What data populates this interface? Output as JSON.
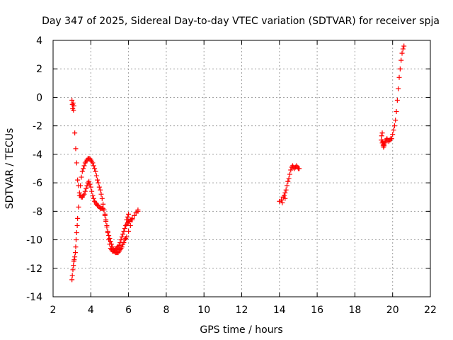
{
  "chart_data": {
    "type": "scatter",
    "title": "Day 347 of 2025, Sidereal Day-to-day VTEC variation (SDTVAR) for receiver spja",
    "xlabel": "GPS time / hours",
    "ylabel": "SDTVAR / TECUs",
    "xlim": [
      2,
      22
    ],
    "ylim": [
      -14,
      4
    ],
    "xticks": [
      "2",
      "4",
      "6",
      "8",
      "10",
      "12",
      "14",
      "16",
      "18",
      "20",
      "22"
    ],
    "yticks": [
      "4",
      "2",
      "0",
      "-2",
      "-4",
      "-6",
      "-8",
      "-10",
      "-12",
      "-14"
    ],
    "grid": true,
    "marker": "+",
    "color": "#ff0000",
    "series": [
      {
        "name": "SDTVAR",
        "x": [
          3.0,
          3.02,
          3.04,
          3.06,
          3.08,
          3.1,
          3.15,
          3.2,
          3.25,
          3.3,
          3.35,
          3.4,
          3.45,
          3.5,
          3.55,
          3.6,
          3.65,
          3.7,
          3.75,
          3.8,
          3.85,
          3.9,
          3.95,
          4.0,
          4.05,
          4.1,
          4.15,
          4.2,
          4.25,
          4.3,
          4.35,
          4.4,
          4.45,
          4.5,
          4.55,
          4.6,
          4.65,
          4.7,
          4.75,
          4.8,
          4.85,
          4.9,
          4.95,
          5.0,
          5.05,
          5.1,
          5.15,
          5.2,
          5.25,
          5.3,
          5.35,
          5.4,
          5.45,
          5.5,
          5.55,
          5.6,
          5.65,
          5.7,
          5.75,
          5.8,
          5.85,
          5.9,
          5.95,
          6.0,
          6.05,
          6.1,
          6.15,
          6.2,
          6.3,
          6.4,
          6.5,
          3.0,
          3.02,
          3.05,
          3.08,
          3.1,
          3.12,
          3.15,
          3.18,
          3.2,
          3.22,
          3.25,
          3.28,
          3.3,
          3.35,
          3.4,
          3.45,
          3.5,
          3.55,
          3.6,
          3.65,
          3.7,
          3.75,
          3.8,
          3.85,
          3.9,
          3.95,
          4.0,
          4.05,
          4.1,
          4.15,
          4.2,
          4.25,
          4.3,
          4.35,
          4.4,
          4.45,
          4.5,
          4.55,
          4.6,
          4.65,
          4.7,
          4.75,
          4.8,
          4.85,
          4.9,
          4.95,
          5.0,
          5.05,
          5.1,
          5.15,
          5.2,
          5.25,
          5.3,
          5.35,
          5.4,
          5.45,
          5.5,
          5.55,
          5.6,
          5.65,
          5.7,
          5.75,
          5.8,
          5.85,
          5.9,
          6.0,
          6.1,
          6.2,
          6.3,
          6.4,
          6.5,
          5.9,
          5.95,
          6.0,
          14.0,
          14.1,
          14.2,
          14.25,
          14.3,
          14.35,
          14.4,
          14.45,
          14.5,
          14.55,
          14.6,
          14.65,
          14.7,
          14.75,
          14.8,
          14.85,
          14.9,
          14.95,
          15.0,
          15.05,
          14.15,
          14.3,
          19.4,
          19.42,
          19.45,
          19.48,
          19.5,
          19.52,
          19.55,
          19.6,
          19.65,
          19.7,
          19.75,
          19.8,
          19.85,
          19.9,
          19.95,
          20.0,
          20.05,
          20.1,
          20.15,
          20.2,
          20.25,
          20.3,
          20.35,
          20.4,
          20.45,
          20.5,
          20.55,
          20.6,
          19.45,
          19.5,
          19.55,
          19.6
        ],
        "y": [
          -0.2,
          -0.5,
          -0.8,
          -0.4,
          -0.9,
          -0.6,
          -2.5,
          -3.6,
          -4.6,
          -5.8,
          -6.2,
          -6.7,
          -6.9,
          -7.0,
          -7.0,
          -6.9,
          -6.8,
          -6.6,
          -6.4,
          -6.2,
          -6.0,
          -5.9,
          -6.1,
          -6.3,
          -6.6,
          -6.9,
          -7.1,
          -7.3,
          -7.4,
          -7.5,
          -7.6,
          -7.6,
          -7.7,
          -7.8,
          -7.8,
          -7.8,
          -7.8,
          -7.9,
          -8.2,
          -8.6,
          -9.0,
          -9.5,
          -10.0,
          -10.3,
          -10.6,
          -10.7,
          -10.8,
          -10.8,
          -10.8,
          -10.7,
          -10.6,
          -10.5,
          -10.5,
          -10.4,
          -10.2,
          -10.0,
          -9.8,
          -9.6,
          -9.4,
          -9.2,
          -9.0,
          -8.9,
          -8.8,
          -8.7,
          -8.7,
          -8.6,
          -8.6,
          -8.5,
          -8.3,
          -8.1,
          -7.9,
          -12.8,
          -12.5,
          -12.1,
          -11.8,
          -11.5,
          -11.4,
          -11.2,
          -10.9,
          -10.5,
          -10.0,
          -9.5,
          -9.0,
          -8.5,
          -7.7,
          -6.9,
          -6.2,
          -5.6,
          -5.2,
          -5.0,
          -4.8,
          -4.6,
          -4.5,
          -4.4,
          -4.3,
          -4.3,
          -4.3,
          -4.4,
          -4.5,
          -4.6,
          -4.8,
          -5.0,
          -5.2,
          -5.5,
          -5.8,
          -6.0,
          -6.3,
          -6.5,
          -6.8,
          -7.1,
          -7.5,
          -7.9,
          -8.3,
          -8.7,
          -9.1,
          -9.4,
          -9.7,
          -9.9,
          -10.1,
          -10.3,
          -10.5,
          -10.7,
          -10.8,
          -10.9,
          -10.9,
          -10.9,
          -10.9,
          -10.8,
          -10.7,
          -10.6,
          -10.5,
          -10.3,
          -10.2,
          -10.0,
          -9.9,
          -9.8,
          -9.4,
          -9.0,
          -8.6,
          -8.3,
          -8.1,
          -8.0,
          -8.6,
          -8.4,
          -8.2,
          -7.3,
          -7.2,
          -7.0,
          -6.9,
          -6.7,
          -6.5,
          -6.2,
          -5.9,
          -5.7,
          -5.4,
          -5.1,
          -4.9,
          -4.8,
          -4.9,
          -5.0,
          -4.9,
          -4.8,
          -4.9,
          -5.0,
          -5.0,
          -7.4,
          -7.1,
          -3.0,
          -2.7,
          -2.5,
          -3.1,
          -3.4,
          -3.5,
          -3.3,
          -3.2,
          -3.0,
          -2.9,
          -3.0,
          -3.1,
          -3.0,
          -2.9,
          -2.9,
          -2.6,
          -2.3,
          -2.0,
          -1.6,
          -1.0,
          -0.2,
          0.6,
          1.4,
          2.0,
          2.6,
          3.1,
          3.4,
          3.6,
          -3.2,
          -3.3,
          -3.4,
          -3.1
        ]
      }
    ]
  }
}
